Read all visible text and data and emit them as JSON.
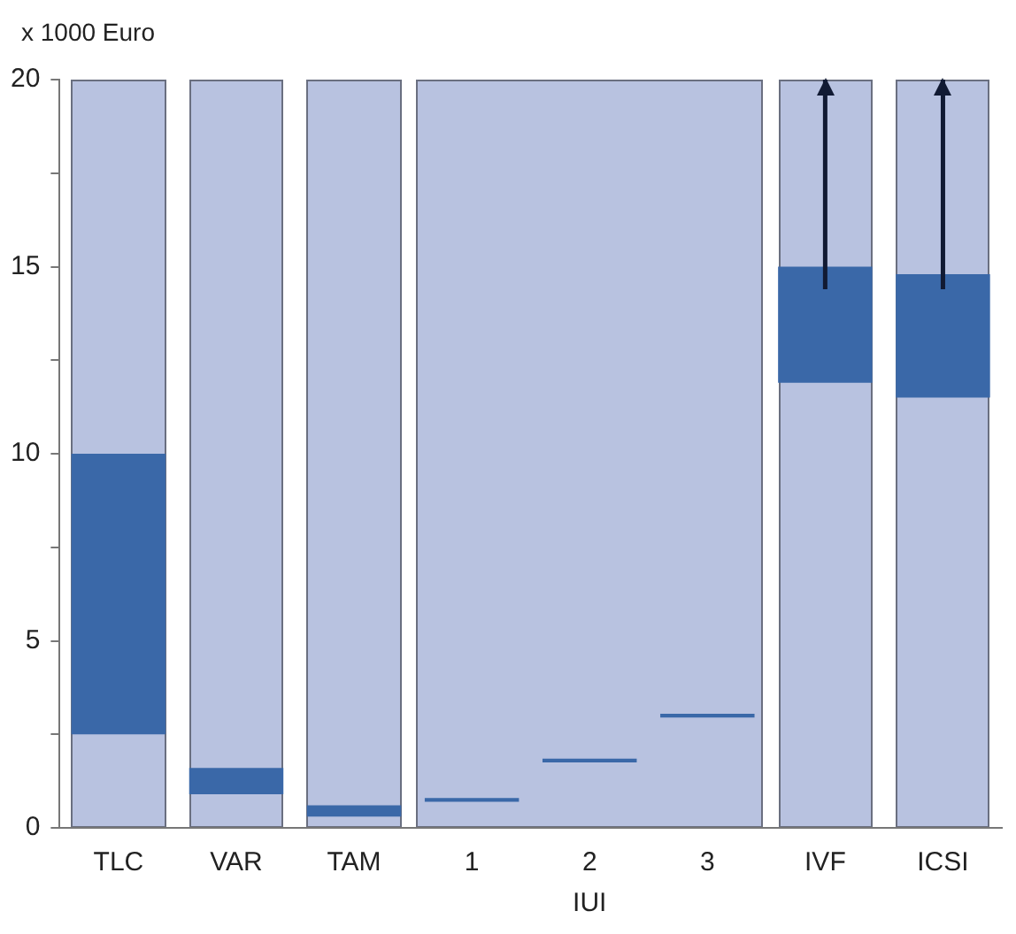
{
  "chart_data": {
    "type": "bar",
    "ylabel": "x 1000 Euro",
    "categories": [
      "TLC",
      "VAR",
      "TAM",
      "1",
      "2",
      "3",
      "IVF",
      "ICSI"
    ],
    "base": [
      2.5,
      0.9,
      0.3,
      0.7,
      1.75,
      2.95,
      11.9,
      11.5
    ],
    "values": [
      7.5,
      0.7,
      0.3,
      0.1,
      0.1,
      0.1,
      3.1,
      3.3
    ],
    "color": "#3a68a8",
    "errors": [
      null,
      null,
      null,
      null,
      null,
      null,
      [
        14.4,
        20
      ],
      [
        14.4,
        20
      ]
    ],
    "ylim": [
      0,
      20
    ],
    "yticks": [
      0,
      {
        "value": 2.5,
        "label": null
      },
      5,
      {
        "value": 7.5,
        "label": null
      },
      10,
      {
        "value": 12.5,
        "label": null
      },
      15,
      {
        "value": 17.5,
        "label": null
      },
      20
    ],
    "annotations": [
      "IUI"
    ]
  }
}
